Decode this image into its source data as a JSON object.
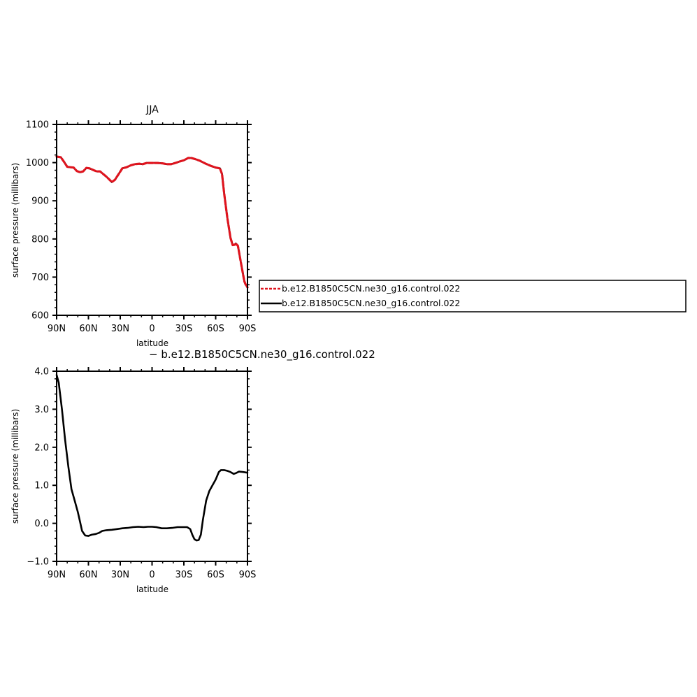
{
  "chart_data": [
    {
      "type": "line",
      "title": "JJA",
      "xlabel": "latitude",
      "ylabel": "surface pressure (millibars)",
      "xlim": [
        90,
        -90
      ],
      "ylim": [
        600,
        1100
      ],
      "xticks": [
        {
          "value": 90,
          "label": "90N"
        },
        {
          "value": 60,
          "label": "60N"
        },
        {
          "value": 30,
          "label": "30N"
        },
        {
          "value": 0,
          "label": "0"
        },
        {
          "value": -30,
          "label": "30S"
        },
        {
          "value": -60,
          "label": "60S"
        },
        {
          "value": -90,
          "label": "90S"
        }
      ],
      "yticks": [
        {
          "value": 1100,
          "label": "1100"
        },
        {
          "value": 1000,
          "label": "1000"
        },
        {
          "value": 900,
          "label": "900"
        },
        {
          "value": 800,
          "label": "800"
        },
        {
          "value": 700,
          "label": "700"
        },
        {
          "value": 600,
          "label": "600"
        }
      ],
      "legend_position": "right",
      "series": [
        {
          "name": "b.e12.B1850C5CN.ne30_g16.control.022",
          "color": "#e0141e",
          "dash": "dashed",
          "points": [
            [
              90,
              1016
            ],
            [
              86,
              1014
            ],
            [
              83,
              1002
            ],
            [
              80,
              989
            ],
            [
              77,
              988
            ],
            [
              74,
              987
            ],
            [
              71,
              978
            ],
            [
              68,
              975
            ],
            [
              65,
              977
            ],
            [
              62,
              986
            ],
            [
              59,
              985
            ],
            [
              55,
              980
            ],
            [
              52,
              977
            ],
            [
              49,
              977
            ],
            [
              46,
              970
            ],
            [
              43,
              963
            ],
            [
              40,
              955
            ],
            [
              38,
              949
            ],
            [
              35,
              955
            ],
            [
              32,
              968
            ],
            [
              28,
              985
            ],
            [
              24,
              988
            ],
            [
              20,
              993
            ],
            [
              16,
              996
            ],
            [
              12,
              997
            ],
            [
              9,
              996
            ],
            [
              5,
              999
            ],
            [
              0,
              999
            ],
            [
              -5,
              999
            ],
            [
              -10,
              998
            ],
            [
              -14,
              996
            ],
            [
              -18,
              996
            ],
            [
              -22,
              999
            ],
            [
              -26,
              1003
            ],
            [
              -30,
              1006
            ],
            [
              -34,
              1012
            ],
            [
              -37,
              1012
            ],
            [
              -41,
              1009
            ],
            [
              -45,
              1005
            ],
            [
              -50,
              998
            ],
            [
              -55,
              992
            ],
            [
              -60,
              987
            ],
            [
              -64,
              985
            ],
            [
              -66,
              970
            ],
            [
              -68,
              920
            ],
            [
              -71,
              855
            ],
            [
              -74,
              803
            ],
            [
              -76,
              784
            ],
            [
              -78,
              785
            ],
            [
              -79,
              788
            ],
            [
              -81,
              782
            ],
            [
              -84,
              735
            ],
            [
              -87,
              690
            ],
            [
              -88,
              682
            ],
            [
              -90,
              673
            ]
          ]
        },
        {
          "name": "b.e12.B1850C5CN.ne30_g16.control.022",
          "color": "#000000",
          "dash": "solid",
          "points": [
            [
              90,
              1016
            ],
            [
              86,
              1014
            ],
            [
              83,
              1002
            ],
            [
              80,
              989
            ],
            [
              77,
              988
            ],
            [
              74,
              987
            ],
            [
              71,
              978
            ],
            [
              68,
              975
            ],
            [
              65,
              977
            ],
            [
              62,
              986
            ],
            [
              59,
              985
            ],
            [
              55,
              980
            ],
            [
              52,
              977
            ],
            [
              49,
              977
            ],
            [
              46,
              970
            ],
            [
              43,
              963
            ],
            [
              40,
              955
            ],
            [
              38,
              949
            ],
            [
              35,
              955
            ],
            [
              32,
              968
            ],
            [
              28,
              985
            ],
            [
              24,
              988
            ],
            [
              20,
              993
            ],
            [
              16,
              996
            ],
            [
              12,
              997
            ],
            [
              9,
              996
            ],
            [
              5,
              999
            ],
            [
              0,
              999
            ],
            [
              -5,
              999
            ],
            [
              -10,
              998
            ],
            [
              -14,
              996
            ],
            [
              -18,
              996
            ],
            [
              -22,
              999
            ],
            [
              -26,
              1003
            ],
            [
              -30,
              1006
            ],
            [
              -34,
              1012
            ],
            [
              -37,
              1012
            ],
            [
              -41,
              1009
            ],
            [
              -45,
              1005
            ],
            [
              -50,
              998
            ],
            [
              -55,
              992
            ],
            [
              -60,
              987
            ],
            [
              -64,
              985
            ],
            [
              -66,
              970
            ],
            [
              -68,
              920
            ],
            [
              -71,
              855
            ],
            [
              -74,
              803
            ],
            [
              -76,
              784
            ],
            [
              -78,
              785
            ],
            [
              -79,
              788
            ],
            [
              -81,
              782
            ],
            [
              -84,
              735
            ],
            [
              -87,
              690
            ],
            [
              -88,
              682
            ],
            [
              -90,
              673
            ]
          ]
        }
      ]
    },
    {
      "type": "line",
      "title": "",
      "xlabel": "latitude",
      "ylabel": "surface pressure (millibars)",
      "xlim": [
        90,
        -90
      ],
      "ylim": [
        -1.0,
        4.0
      ],
      "xticks": [
        {
          "value": 90,
          "label": "90N"
        },
        {
          "value": 60,
          "label": "60N"
        },
        {
          "value": 30,
          "label": "30N"
        },
        {
          "value": 0,
          "label": "0"
        },
        {
          "value": -30,
          "label": "30S"
        },
        {
          "value": -60,
          "label": "60S"
        },
        {
          "value": -90,
          "label": "90S"
        }
      ],
      "yticks": [
        {
          "value": 4.0,
          "label": "4.0"
        },
        {
          "value": 3.0,
          "label": "3.0"
        },
        {
          "value": 2.0,
          "label": "2.0"
        },
        {
          "value": 1.0,
          "label": "1.0"
        },
        {
          "value": 0.0,
          "label": "0.0"
        },
        {
          "value": -1.0,
          "label": "−1.0"
        }
      ],
      "difference_label": "− b.e12.B1850C5CN.ne30_g16.control.022",
      "series": [
        {
          "color": "#000000",
          "dash": "solid",
          "points": [
            [
              90,
              3.9
            ],
            [
              88,
              3.7
            ],
            [
              85,
              3.0
            ],
            [
              82,
              2.2
            ],
            [
              79,
              1.5
            ],
            [
              76,
              0.9
            ],
            [
              73,
              0.6
            ],
            [
              70,
              0.3
            ],
            [
              68,
              0.05
            ],
            [
              66,
              -0.2
            ],
            [
              63,
              -0.32
            ],
            [
              60,
              -0.33
            ],
            [
              57,
              -0.3
            ],
            [
              53,
              -0.28
            ],
            [
              50,
              -0.25
            ],
            [
              47,
              -0.2
            ],
            [
              43,
              -0.18
            ],
            [
              38,
              -0.17
            ],
            [
              33,
              -0.15
            ],
            [
              28,
              -0.13
            ],
            [
              23,
              -0.12
            ],
            [
              18,
              -0.1
            ],
            [
              13,
              -0.09
            ],
            [
              8,
              -0.1
            ],
            [
              4,
              -0.09
            ],
            [
              0,
              -0.09
            ],
            [
              -4,
              -0.1
            ],
            [
              -9,
              -0.13
            ],
            [
              -14,
              -0.13
            ],
            [
              -19,
              -0.12
            ],
            [
              -24,
              -0.1
            ],
            [
              -29,
              -0.1
            ],
            [
              -33,
              -0.1
            ],
            [
              -36,
              -0.15
            ],
            [
              -38,
              -0.3
            ],
            [
              -40,
              -0.42
            ],
            [
              -42,
              -0.45
            ],
            [
              -44,
              -0.44
            ],
            [
              -46,
              -0.3
            ],
            [
              -48,
              0.1
            ],
            [
              -51,
              0.6
            ],
            [
              -54,
              0.85
            ],
            [
              -57,
              1.0
            ],
            [
              -60,
              1.15
            ],
            [
              -63,
              1.35
            ],
            [
              -65,
              1.4
            ],
            [
              -68,
              1.4
            ],
            [
              -71,
              1.38
            ],
            [
              -74,
              1.35
            ],
            [
              -77,
              1.3
            ],
            [
              -79,
              1.32
            ],
            [
              -82,
              1.36
            ],
            [
              -86,
              1.35
            ],
            [
              -90,
              1.33
            ]
          ]
        }
      ]
    }
  ]
}
